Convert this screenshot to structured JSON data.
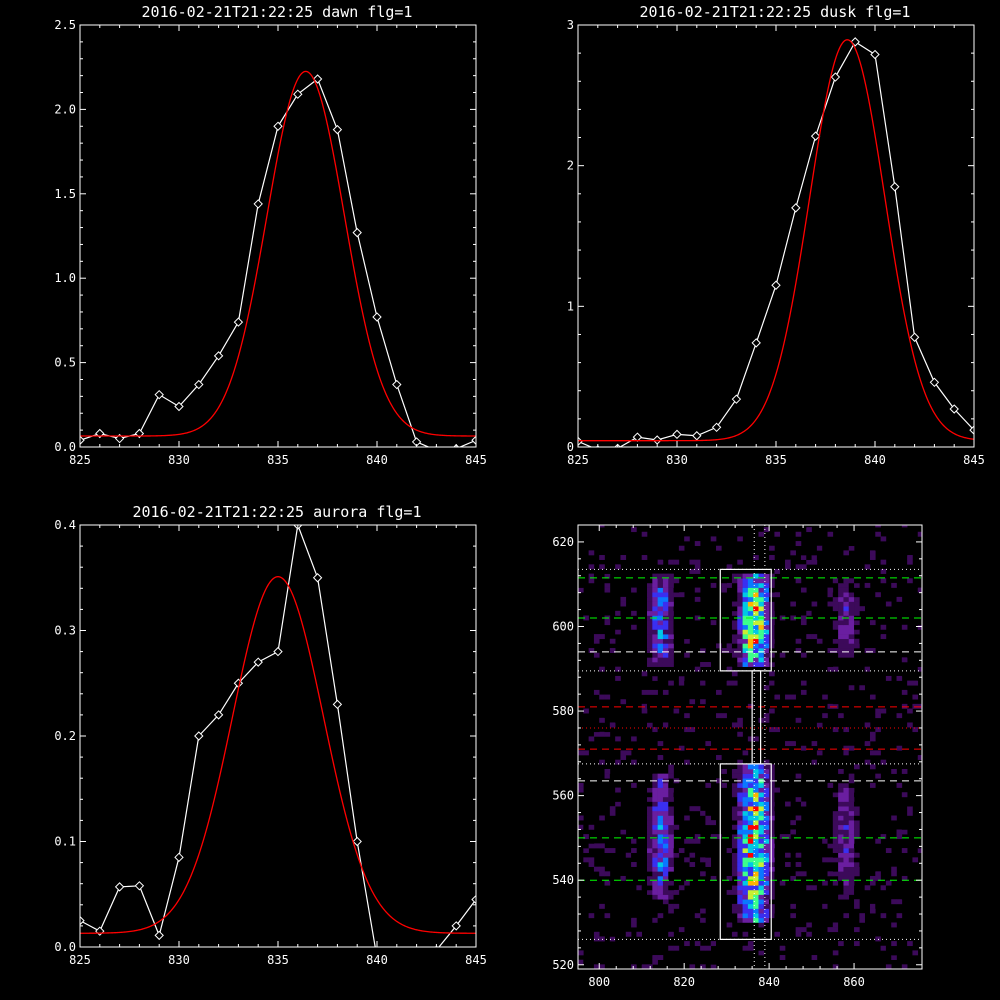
{
  "chart_data": [
    {
      "type": "line",
      "title": "2016-02-21T21:22:25 dawn flg=1",
      "xlim": [
        825,
        845
      ],
      "ylim": [
        0,
        2.5
      ],
      "xticks": [
        825,
        830,
        835,
        840,
        845
      ],
      "yticks": [
        0.0,
        0.5,
        1.0,
        1.5,
        2.0,
        2.5
      ],
      "xtick_labels": [
        "825",
        "830",
        "835",
        "840",
        "845"
      ],
      "ytick_labels": [
        "0.0",
        "0.5",
        "1.0",
        "1.5",
        "2.0",
        "2.5"
      ],
      "series": [
        {
          "color": "#ffffff",
          "marker": "diamond",
          "x": [
            825,
            826,
            827,
            828,
            829,
            830,
            831,
            832,
            833,
            834,
            835,
            836,
            837,
            838,
            839,
            840,
            841,
            842,
            843,
            844,
            845
          ],
          "y": [
            0.04,
            0.08,
            0.05,
            0.08,
            0.31,
            0.24,
            0.37,
            0.54,
            0.74,
            1.44,
            1.9,
            2.09,
            2.18,
            1.88,
            1.27,
            0.77,
            0.37,
            0.03,
            -0.02,
            -0.01,
            0.04
          ]
        },
        {
          "color": "#ff0000",
          "model": "gaussian",
          "amplitude": 2.16,
          "center": 836.4,
          "sigma": 1.95,
          "offset": 0.065
        }
      ]
    },
    {
      "type": "line",
      "title": "2016-02-21T21:22:25 dusk flg=1",
      "xlim": [
        825,
        845
      ],
      "ylim": [
        0,
        3
      ],
      "xticks": [
        825,
        830,
        835,
        840,
        845
      ],
      "yticks": [
        0,
        1,
        2,
        3
      ],
      "xtick_labels": [
        "825",
        "830",
        "835",
        "840",
        "845"
      ],
      "ytick_labels": [
        "0",
        "1",
        "2",
        "3"
      ],
      "series": [
        {
          "color": "#ffffff",
          "marker": "diamond",
          "x": [
            825,
            826,
            827,
            828,
            829,
            830,
            831,
            832,
            833,
            834,
            835,
            836,
            837,
            838,
            839,
            840,
            841,
            842,
            843,
            844,
            845
          ],
          "y": [
            0.04,
            -0.02,
            -0.01,
            0.07,
            0.05,
            0.09,
            0.08,
            0.14,
            0.34,
            0.74,
            1.15,
            1.7,
            2.21,
            2.63,
            2.88,
            2.79,
            1.85,
            0.78,
            0.46,
            0.27,
            0.12
          ]
        },
        {
          "color": "#ff0000",
          "model": "gaussian",
          "amplitude": 2.85,
          "center": 838.6,
          "sigma": 1.9,
          "offset": 0.045
        }
      ]
    },
    {
      "type": "line",
      "title": "2016-02-21T21:22:25 aurora flg=1",
      "xlim": [
        825,
        845
      ],
      "ylim": [
        0,
        0.4
      ],
      "xticks": [
        825,
        830,
        835,
        840,
        845
      ],
      "yticks": [
        0.0,
        0.1,
        0.2,
        0.3,
        0.4
      ],
      "xtick_labels": [
        "825",
        "830",
        "835",
        "840",
        "845"
      ],
      "ytick_labels": [
        "0.0",
        "0.1",
        "0.2",
        "0.3",
        "0.4"
      ],
      "series": [
        {
          "color": "#ffffff",
          "marker": "diamond",
          "x": [
            825,
            826,
            827,
            828,
            829,
            830,
            831,
            832,
            833,
            834,
            835,
            836,
            837,
            838,
            839,
            840,
            841,
            842,
            843,
            844,
            845
          ],
          "y": [
            0.025,
            0.015,
            0.057,
            0.058,
            0.011,
            0.085,
            0.2,
            0.22,
            0.25,
            0.27,
            0.28,
            0.4,
            0.35,
            0.23,
            0.1,
            -0.01,
            -0.005,
            -0.005,
            -0.003,
            0.02,
            0.045
          ]
        },
        {
          "color": "#ff0000",
          "model": "gaussian",
          "amplitude": 0.338,
          "center": 835.0,
          "sigma": 2.3,
          "offset": 0.013
        }
      ]
    },
    {
      "type": "heatmap",
      "xlim": [
        795,
        876
      ],
      "ylim": [
        519,
        624
      ],
      "xticks": [
        800,
        820,
        840,
        860
      ],
      "yticks": [
        520,
        540,
        560,
        580,
        600,
        620
      ],
      "xtick_labels": [
        "800",
        "820",
        "840",
        "860"
      ],
      "ytick_labels": [
        "520",
        "540",
        "560",
        "580",
        "600",
        "620"
      ],
      "colormap": [
        "#000000",
        "#3c0a5a",
        "#6a1ea0",
        "#3a2ff0",
        "#0a78ff",
        "#00c8e6",
        "#3cff8c",
        "#c8f032",
        "#ffb400",
        "#ff0000"
      ],
      "emission_columns": [
        {
          "center_x": 814.5,
          "width": 6,
          "y_ranges": [
            [
              590,
              613
            ],
            [
              536,
              565
            ]
          ],
          "peak": 0.55
        },
        {
          "center_x": 836.5,
          "width": 8,
          "y_ranges": [
            [
              590,
              612
            ],
            [
              530,
              567
            ]
          ],
          "peak": 1.0
        },
        {
          "center_x": 858,
          "width": 7,
          "y_ranges": [
            [
              593,
              611
            ],
            [
              537,
              564
            ]
          ],
          "peak": 0.32
        }
      ],
      "boxes": [
        {
          "x": [
            828.5,
            840.5
          ],
          "y": [
            589.5,
            613.5
          ]
        },
        {
          "x": [
            828.5,
            840.5
          ],
          "y": [
            526,
            567.5
          ]
        },
        {
          "x": [
            836,
            838
          ],
          "y": [
            567.5,
            589.5
          ]
        }
      ],
      "vertical_dotted_lines_x": [
        836.5,
        839
      ],
      "horizontal_lines": [
        {
          "y": 613.5,
          "color": "#ffffff",
          "style": "dotted"
        },
        {
          "y": 611.5,
          "color": "#00ff00",
          "style": "dashed"
        },
        {
          "y": 602,
          "color": "#00ff00",
          "style": "dashed"
        },
        {
          "y": 594,
          "color": "#ffffff",
          "style": "dashed"
        },
        {
          "y": 589.5,
          "color": "#ffffff",
          "style": "dotted"
        },
        {
          "y": 581,
          "color": "#ff0000",
          "style": "dashed"
        },
        {
          "y": 576,
          "color": "#ff0000",
          "style": "dotted"
        },
        {
          "y": 571,
          "color": "#ff0000",
          "style": "dashed"
        },
        {
          "y": 567.5,
          "color": "#ffffff",
          "style": "dotted"
        },
        {
          "y": 563.5,
          "color": "#ffffff",
          "style": "dashed"
        },
        {
          "y": 550,
          "color": "#00ff00",
          "style": "dashed"
        },
        {
          "y": 540,
          "color": "#00ff00",
          "style": "dashed"
        },
        {
          "y": 526,
          "color": "#ffffff",
          "style": "dotted"
        }
      ]
    }
  ]
}
